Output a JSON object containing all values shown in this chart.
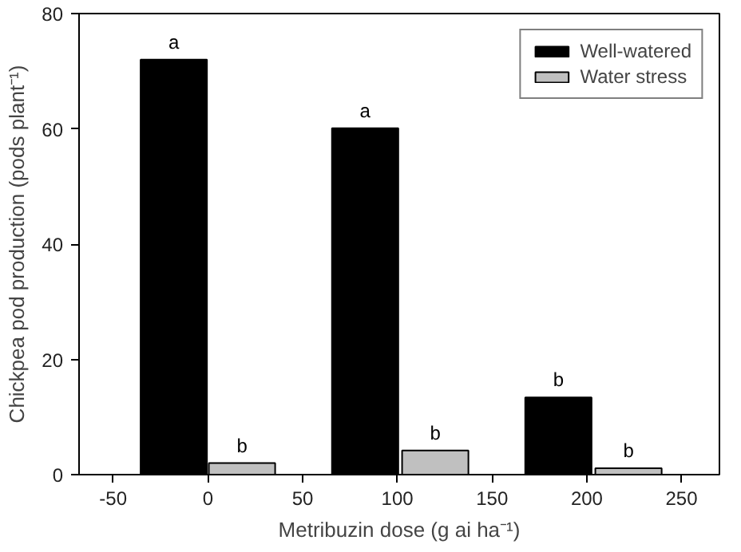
{
  "chart_data": {
    "type": "bar",
    "xlabel": "Metribuzin dose (g ai ha⁻¹)",
    "ylabel": "Chickpea pod production (pods plant⁻¹)",
    "series": [
      {
        "name": "Well-watered",
        "color": "#000000",
        "x": [
          -18,
          83,
          185
        ],
        "values": [
          72,
          60.1,
          13.4
        ]
      },
      {
        "name": "Water stress",
        "color": "#c0c0c0",
        "x": [
          18,
          120,
          222
        ],
        "values": [
          2.0,
          4.2,
          1.1
        ]
      }
    ],
    "xlim": [
      -68,
      270
    ],
    "xticks": [
      -50,
      0,
      50,
      100,
      150,
      200,
      250
    ],
    "ylim": [
      0,
      80
    ],
    "yticks": [
      0,
      20,
      40,
      60,
      80
    ],
    "annotations": [
      {
        "text": "a",
        "x": -18,
        "y": 72
      },
      {
        "text": "a",
        "x": 83,
        "y": 60.1
      },
      {
        "text": "b",
        "x": 185,
        "y": 13.4
      },
      {
        "text": "b",
        "x": 18,
        "y": 2.0
      },
      {
        "text": "b",
        "x": 120,
        "y": 4.2
      },
      {
        "text": "b",
        "x": 222,
        "y": 1.1
      }
    ],
    "grid": false,
    "legend": "top right"
  }
}
